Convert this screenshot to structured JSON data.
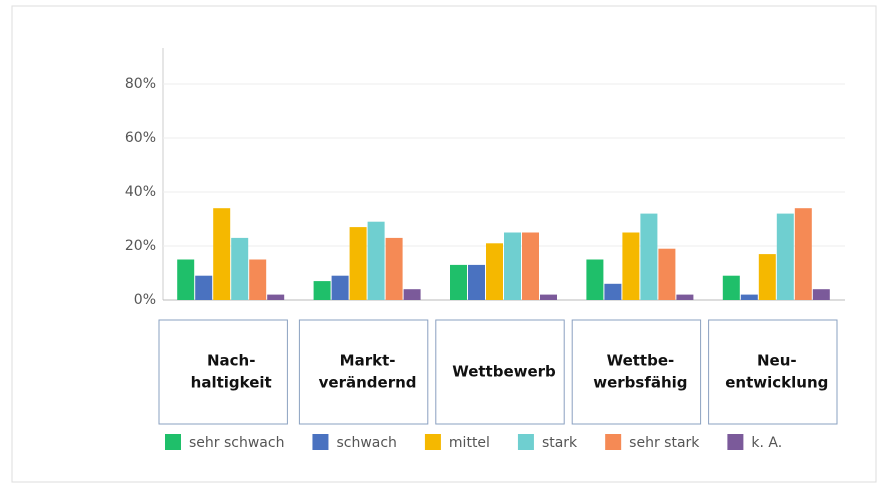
{
  "chart_data": {
    "type": "bar",
    "categories": [
      [
        "Nach-",
        "haltigkeit"
      ],
      [
        "Markt-",
        "verändernd"
      ],
      [
        "Wettbewerb"
      ],
      [
        "Wettbe-",
        "werbsfähig"
      ],
      [
        "Neu-",
        "entwicklung"
      ]
    ],
    "series": [
      {
        "name": "sehr schwach",
        "color": "#1fbf6a",
        "values": [
          15,
          7,
          13,
          15,
          9
        ]
      },
      {
        "name": "schwach",
        "color": "#4a72c0",
        "values": [
          9,
          9,
          13,
          6,
          2
        ]
      },
      {
        "name": "mittel",
        "color": "#f5b800",
        "values": [
          34,
          27,
          21,
          25,
          17
        ]
      },
      {
        "name": "stark",
        "color": "#6fcfd0",
        "values": [
          23,
          29,
          25,
          32,
          32
        ]
      },
      {
        "name": "sehr stark",
        "color": "#f58a55",
        "values": [
          15,
          23,
          25,
          19,
          34
        ]
      },
      {
        "name": "k. A.",
        "color": "#7b5a9a",
        "values": [
          2,
          4,
          2,
          2,
          4
        ]
      }
    ],
    "ylim": [
      0,
      90
    ],
    "yticks": [
      {
        "value": 0,
        "label": "0%"
      },
      {
        "value": 20,
        "label": "20%"
      },
      {
        "value": 40,
        "label": "40%"
      },
      {
        "value": 60,
        "label": "60%"
      },
      {
        "value": 80,
        "label": "80%"
      }
    ],
    "grid": true,
    "legend": "bottom"
  }
}
